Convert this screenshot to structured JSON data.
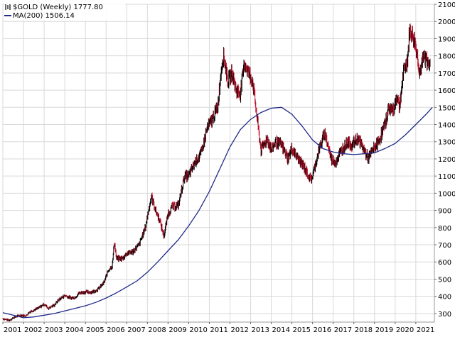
{
  "chart_data": {
    "type": "line",
    "title": "$GOLD (Weekly) 1777.80",
    "legend": [
      {
        "label": "$GOLD (Weekly) 1777.80",
        "color": "#000000",
        "icon": "bar-chart-icon"
      },
      {
        "label": "MA(200) 1506.14",
        "color": "#1f2a8a",
        "icon": "line-swatch-icon"
      }
    ],
    "legend_position": "top-left",
    "ylim": [
      250,
      2100
    ],
    "xlim": [
      2001.0,
      2021.9
    ],
    "yticks": [
      300,
      400,
      500,
      600,
      700,
      800,
      900,
      1000,
      1100,
      1200,
      1300,
      1400,
      1500,
      1600,
      1700,
      1800,
      1900,
      2000,
      2100
    ],
    "xticks": [
      "2001",
      "2002",
      "2003",
      "2004",
      "2005",
      "2006",
      "2007",
      "2008",
      "2009",
      "2010",
      "2011",
      "2012",
      "2013",
      "2014",
      "2015",
      "2016",
      "2017",
      "2018",
      "2019",
      "2020",
      "2021"
    ],
    "grid": true,
    "series": [
      {
        "name": "$GOLD (Weekly)",
        "color": "#000000",
        "down_color": "#c0102a",
        "style": "hlc-bars",
        "x": [
          2001.0,
          2001.3,
          2001.5,
          2001.7,
          2001.9,
          2002.1,
          2002.3,
          2002.5,
          2002.7,
          2003.0,
          2003.2,
          2003.5,
          2003.7,
          2004.0,
          2004.3,
          2004.5,
          2004.7,
          2005.0,
          2005.3,
          2005.6,
          2005.9,
          2006.1,
          2006.3,
          2006.4,
          2006.5,
          2006.8,
          2007.0,
          2007.3,
          2007.6,
          2007.9,
          2008.1,
          2008.2,
          2008.4,
          2008.6,
          2008.8,
          2009.0,
          2009.2,
          2009.5,
          2009.8,
          2010.0,
          2010.3,
          2010.6,
          2010.9,
          2011.1,
          2011.4,
          2011.6,
          2011.7,
          2011.9,
          2012.1,
          2012.3,
          2012.5,
          2012.7,
          2012.9,
          2013.1,
          2013.3,
          2013.5,
          2013.8,
          2014.0,
          2014.2,
          2014.5,
          2014.8,
          2015.0,
          2015.3,
          2015.6,
          2015.9,
          2016.0,
          2016.3,
          2016.6,
          2016.9,
          2017.1,
          2017.4,
          2017.7,
          2017.9,
          2018.2,
          2018.5,
          2018.7,
          2018.9,
          2019.2,
          2019.5,
          2019.7,
          2019.9,
          2020.1,
          2020.2,
          2020.4,
          2020.6,
          2020.7,
          2020.9,
          2021.0,
          2021.2,
          2021.4,
          2021.6,
          2021.7
        ],
        "values": [
          270,
          260,
          275,
          285,
          290,
          285,
          310,
          320,
          330,
          355,
          330,
          350,
          380,
          405,
          390,
          395,
          420,
          425,
          425,
          440,
          480,
          550,
          580,
          720,
          620,
          620,
          650,
          660,
          700,
          800,
          930,
          980,
          900,
          840,
          750,
          880,
          920,
          930,
          1100,
          1100,
          1180,
          1230,
          1380,
          1420,
          1500,
          1750,
          1800,
          1650,
          1700,
          1600,
          1580,
          1760,
          1700,
          1650,
          1450,
          1250,
          1320,
          1250,
          1300,
          1280,
          1200,
          1260,
          1200,
          1150,
          1080,
          1100,
          1250,
          1350,
          1200,
          1180,
          1250,
          1300,
          1280,
          1320,
          1250,
          1200,
          1250,
          1300,
          1400,
          1500,
          1480,
          1570,
          1500,
          1700,
          1780,
          1950,
          1900,
          1850,
          1700,
          1800,
          1750,
          1790
        ]
      },
      {
        "name": "MA(200)",
        "color": "#1f2a8a",
        "style": "line",
        "x": [
          2001.0,
          2001.5,
          2002.0,
          2002.5,
          2003.0,
          2003.5,
          2004.0,
          2004.5,
          2005.0,
          2005.5,
          2006.0,
          2006.5,
          2007.0,
          2007.5,
          2008.0,
          2008.5,
          2009.0,
          2009.5,
          2010.0,
          2010.5,
          2011.0,
          2011.5,
          2012.0,
          2012.5,
          2013.0,
          2013.5,
          2014.0,
          2014.5,
          2015.0,
          2015.5,
          2016.0,
          2016.5,
          2017.0,
          2017.5,
          2018.0,
          2018.5,
          2019.0,
          2019.5,
          2020.0,
          2020.5,
          2021.0,
          2021.5,
          2021.8
        ],
        "values": [
          305,
          290,
          275,
          280,
          290,
          300,
          315,
          330,
          345,
          365,
          390,
          420,
          455,
          490,
          540,
          600,
          665,
          730,
          810,
          900,
          1010,
          1140,
          1270,
          1370,
          1430,
          1470,
          1495,
          1500,
          1460,
          1390,
          1310,
          1260,
          1240,
          1230,
          1225,
          1230,
          1235,
          1260,
          1290,
          1340,
          1400,
          1460,
          1500
        ]
      }
    ]
  }
}
